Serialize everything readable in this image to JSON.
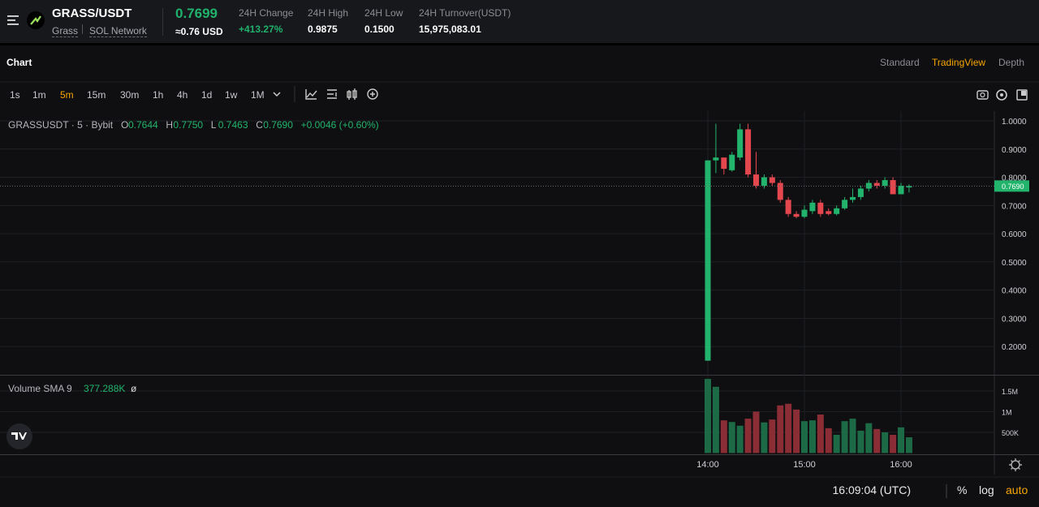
{
  "header": {
    "pair": "GRASS/USDT",
    "token": "Grass",
    "network": "SOL Network",
    "price": "0.7699",
    "price_usd": "≈0.76 USD",
    "stats": [
      {
        "label": "24H Change",
        "value": "+413.27%"
      },
      {
        "label": "24H High",
        "value": "0.9875"
      },
      {
        "label": "24H Low",
        "value": "0.1500"
      },
      {
        "label": "24H Turnover(USDT)",
        "value": "15,975,083.01"
      }
    ]
  },
  "tabs": {
    "title": "Chart",
    "views": [
      "Standard",
      "TradingView",
      "Depth"
    ]
  },
  "intervals": [
    "1s",
    "1m",
    "5m",
    "15m",
    "30m",
    "1h",
    "4h",
    "1d",
    "1w",
    "1M"
  ],
  "legend": {
    "symbol": "GRASSUSDT · 5 · Bybit",
    "ohlc": [
      "O",
      "0.7644",
      "H",
      "0.7750",
      "L",
      "0.7463",
      "C",
      "0.7690"
    ],
    "change": "+0.0046 (+0.60%)"
  },
  "volume_legend": {
    "name": "Volume SMA 9",
    "value": "377.288K",
    "extra": "ø"
  },
  "chart": {
    "type": "candlestick",
    "categories": [
      "14:00",
      null,
      null,
      null,
      null,
      null,
      null,
      null,
      null,
      null,
      null,
      null,
      "15:00",
      null,
      null,
      null,
      null,
      null,
      null,
      null,
      null,
      null,
      null,
      null,
      "16:00",
      null
    ],
    "open": [
      0.15,
      0.86,
      0.87,
      0.825,
      0.87,
      0.97,
      0.81,
      0.77,
      0.8,
      0.78,
      0.72,
      0.67,
      0.66,
      0.68,
      0.71,
      0.68,
      0.67,
      0.69,
      0.72,
      0.73,
      0.76,
      0.78,
      0.77,
      0.79,
      0.74,
      0.764
    ],
    "high": [
      0.86,
      0.99,
      0.87,
      0.89,
      0.99,
      0.99,
      0.89,
      0.81,
      0.81,
      0.79,
      0.73,
      0.68,
      0.7,
      0.72,
      0.72,
      0.69,
      0.7,
      0.73,
      0.76,
      0.77,
      0.79,
      0.79,
      0.8,
      0.8,
      0.78,
      0.775
    ],
    "low": [
      0.15,
      0.815,
      0.81,
      0.82,
      0.86,
      0.8,
      0.76,
      0.76,
      0.77,
      0.71,
      0.66,
      0.655,
      0.655,
      0.67,
      0.66,
      0.665,
      0.665,
      0.685,
      0.71,
      0.72,
      0.75,
      0.76,
      0.76,
      0.74,
      0.74,
      0.746
    ],
    "close": [
      0.86,
      0.87,
      0.83,
      0.88,
      0.97,
      0.81,
      0.77,
      0.8,
      0.78,
      0.72,
      0.67,
      0.66,
      0.685,
      0.71,
      0.67,
      0.67,
      0.69,
      0.72,
      0.73,
      0.76,
      0.78,
      0.77,
      0.79,
      0.74,
      0.77,
      0.769
    ],
    "volume": [
      1790000,
      1600000,
      790000,
      750000,
      660000,
      830000,
      1000000,
      740000,
      810000,
      1150000,
      1190000,
      1050000,
      770000,
      790000,
      930000,
      600000,
      440000,
      770000,
      830000,
      540000,
      720000,
      580000,
      500000,
      440000,
      620000,
      380000
    ],
    "ylim": [
      0.1,
      1.0345
    ],
    "yticks": [
      {
        "value": 1,
        "label": "1.0000"
      },
      {
        "value": 0.9,
        "label": "0.9000"
      },
      {
        "value": 0.8,
        "label": "0.8000"
      },
      {
        "value": 0.7,
        "label": "0.7000"
      },
      {
        "value": 0.6,
        "label": "0.6000"
      },
      {
        "value": 0.5,
        "label": "0.5000"
      },
      {
        "value": 0.4,
        "label": "0.4000"
      },
      {
        "value": 0.3,
        "label": "0.3000"
      },
      {
        "value": 0.2,
        "label": "0.2000"
      }
    ],
    "volume_ylim": [
      0,
      1870000
    ],
    "volume_yticks": [
      {
        "value": 1500000,
        "label": "1.5M"
      },
      {
        "value": 1000000,
        "label": "1M"
      },
      {
        "value": 500000,
        "label": "500K"
      }
    ],
    "last_price": {
      "value": 0.769,
      "label": "0.7690"
    },
    "up_color": "#22b46c",
    "down_color": "#e5474f",
    "up_volume_color": "#1c6b46",
    "down_volume_color": "#8a2d35"
  },
  "footer": {
    "time": "16:09:04 (UTC)",
    "options": [
      "%",
      "log",
      "auto"
    ]
  }
}
